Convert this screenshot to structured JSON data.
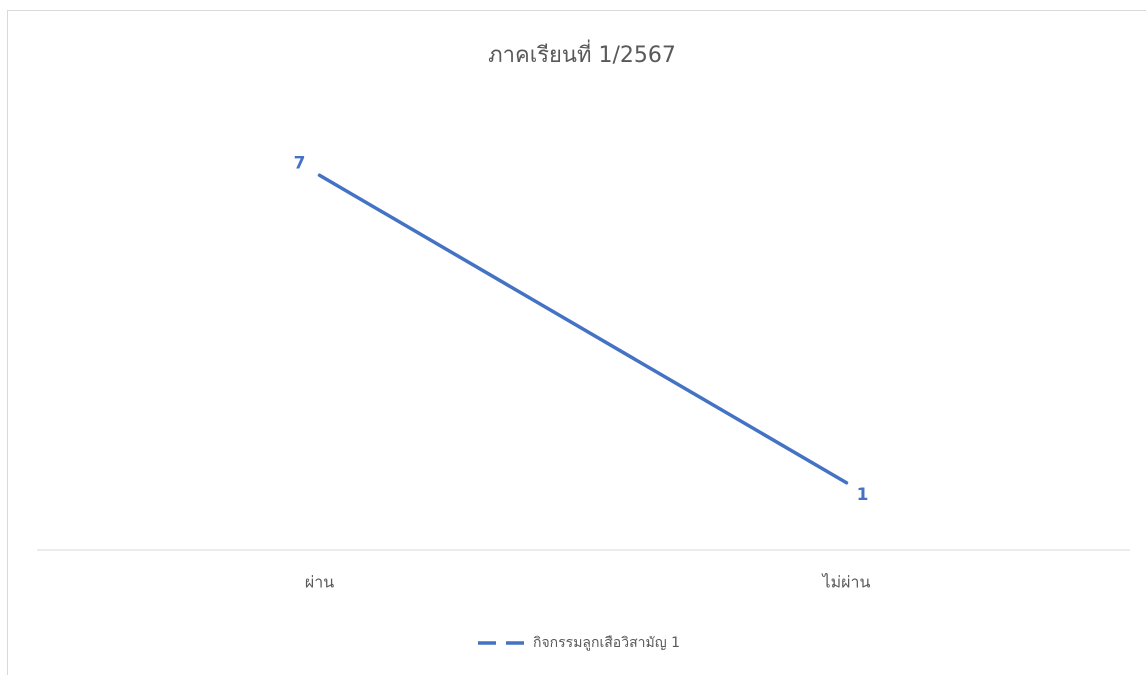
{
  "chart_data": {
    "type": "line",
    "title": "ภาคเรียนที่ 1/2567",
    "categories": [
      "ผ่าน",
      "ไม่ผ่าน"
    ],
    "series": [
      {
        "name": "กิจกรรมลูกเสือวิสามัญ 1",
        "color": "#4472c4",
        "values": [
          7,
          1
        ]
      }
    ],
    "ylim": [
      0,
      8
    ]
  }
}
